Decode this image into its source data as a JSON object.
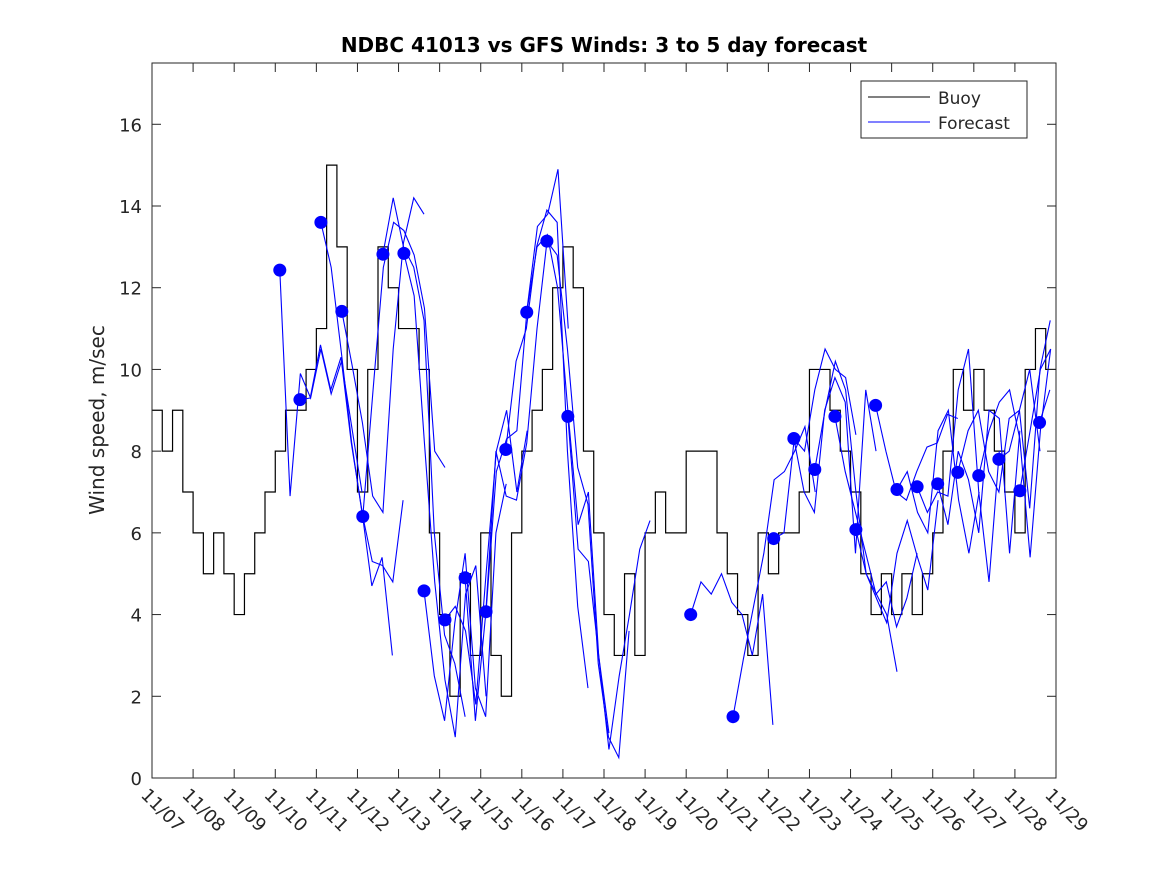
{
  "chart_data": {
    "type": "line",
    "title": "NDBC 41013 vs GFS Winds: 3 to 5 day forecast",
    "xlabel": "",
    "ylabel": "Wind speed, m/sec",
    "ylim": [
      0,
      17.5
    ],
    "xlim_days_from_start": [
      0,
      22
    ],
    "x_tick_labels": [
      "11/07",
      "11/08",
      "11/09",
      "11/10",
      "11/11",
      "11/12",
      "11/13",
      "11/14",
      "11/15",
      "11/16",
      "11/17",
      "11/18",
      "11/19",
      "11/20",
      "11/21",
      "11/22",
      "11/23",
      "11/24",
      "11/25",
      "11/26",
      "11/27",
      "11/28",
      "11/29"
    ],
    "y_ticks": [
      0,
      2,
      4,
      6,
      8,
      10,
      12,
      14,
      16
    ],
    "grid": false,
    "legend": {
      "placement": "top-right",
      "entries": [
        {
          "label": "Buoy",
          "color": "#000000"
        },
        {
          "label": "Forecast",
          "color": "#0000ff"
        }
      ]
    },
    "buoy": {
      "name": "Buoy",
      "color": "#000000",
      "step_days": 0.25,
      "values": [
        9,
        8,
        9,
        7,
        6,
        5,
        6,
        5,
        4,
        5,
        6,
        7,
        8,
        9,
        9,
        10,
        11,
        15,
        13,
        10,
        7,
        10,
        13,
        12,
        11,
        11,
        10,
        6,
        4,
        2,
        5,
        3,
        6,
        3,
        2,
        6,
        8,
        9,
        10,
        12,
        13,
        12,
        8,
        6,
        4,
        3,
        5,
        3,
        6,
        7,
        6,
        6,
        8,
        8,
        8,
        6,
        5,
        4,
        3,
        6,
        5,
        6,
        6,
        7,
        10,
        10,
        9,
        8,
        7,
        5,
        4,
        5,
        4,
        5,
        4,
        5,
        6,
        8,
        10,
        9,
        10,
        9,
        8,
        7,
        6,
        10,
        11,
        10,
        10
      ]
    },
    "forecast": {
      "name": "Forecast",
      "color": "#0000ff",
      "step_days": 0.25,
      "runs": [
        {
          "start": 3.11,
          "values": [
            12.43,
            6.9,
            9.9,
            9.3,
            10.5,
            9.4,
            10.2,
            8.6,
            7.0
          ]
        },
        {
          "start": 3.6,
          "values": [
            9.26,
            9.3,
            10.6,
            9.5,
            10.3,
            8.2,
            6.6,
            4.7,
            5.4,
            3.0
          ]
        },
        {
          "start": 4.11,
          "values": [
            13.6,
            12.5,
            10.4,
            8.2,
            6.5,
            5.3,
            5.2,
            4.8,
            6.8
          ]
        },
        {
          "start": 4.62,
          "values": [
            11.42,
            10.1,
            8.7,
            6.9,
            6.5,
            10.5,
            13.1,
            14.2,
            13.8
          ]
        },
        {
          "start": 5.13,
          "values": [
            6.4,
            9.5,
            12.5,
            13.6,
            13.4,
            12.8,
            11.5,
            8.0,
            7.6
          ]
        },
        {
          "start": 5.62,
          "values": [
            12.82,
            14.2,
            13.0,
            12.5,
            11.2,
            6.0,
            3.5,
            2.8,
            1.5
          ]
        },
        {
          "start": 6.13,
          "values": [
            12.84,
            11.8,
            8.2,
            4.8,
            2.4,
            1.0,
            4.5,
            5.2,
            2.0
          ]
        },
        {
          "start": 6.62,
          "values": [
            4.58,
            2.5,
            1.4,
            3.8,
            5.5,
            2.2,
            1.5,
            6.0,
            7.2
          ]
        },
        {
          "start": 7.13,
          "values": [
            3.87,
            4.2,
            3.6,
            1.8,
            5.0,
            8.0,
            9.0,
            7.0,
            8.5
          ]
        },
        {
          "start": 7.62,
          "values": [
            4.9,
            1.4,
            4.0,
            8.0,
            6.9,
            6.8,
            8.2,
            11.0,
            13.2
          ]
        },
        {
          "start": 8.13,
          "values": [
            4.07,
            7.5,
            8.3,
            8.5,
            11.5,
            13.5,
            13.8,
            14.9,
            11.0
          ]
        },
        {
          "start": 8.61,
          "values": [
            8.04,
            10.2,
            11.0,
            13.0,
            13.9,
            13.6,
            8.0,
            4.2,
            2.2
          ]
        },
        {
          "start": 9.12,
          "values": [
            11.4,
            13.0,
            13.3,
            12.0,
            9.0,
            6.2,
            7.0,
            3.0,
            1.1
          ]
        },
        {
          "start": 9.61,
          "values": [
            13.14,
            12.8,
            10.5,
            7.6,
            6.7,
            2.8,
            1.0,
            0.5,
            3.6
          ]
        },
        {
          "start": 10.12,
          "values": [
            8.85,
            5.6,
            5.3,
            3.0,
            0.7,
            2.5,
            4.0,
            5.6,
            6.3
          ]
        },
        {
          "start": 13.11,
          "values": [
            4.0,
            4.8,
            4.5,
            5.0,
            4.3,
            4.0,
            3.0,
            4.5,
            1.3
          ]
        },
        {
          "start": 14.14,
          "values": [
            1.5,
            2.9,
            4.2,
            5.5,
            7.3,
            7.5,
            8.0,
            8.6,
            7.0
          ]
        },
        {
          "start": 15.13,
          "values": [
            5.86,
            6.0,
            8.3,
            8.0,
            9.5,
            10.5,
            10.0,
            9.8,
            8.4
          ]
        },
        {
          "start": 15.62,
          "values": [
            8.31,
            7.0,
            6.5,
            9.0,
            9.8,
            9.2,
            5.5,
            9.5,
            8.0
          ]
        },
        {
          "start": 16.13,
          "values": [
            7.55,
            9.0,
            10.2,
            9.5,
            7.0,
            5.0,
            4.5,
            4.0,
            2.6
          ]
        },
        {
          "start": 16.62,
          "values": [
            8.85,
            7.5,
            6.5,
            5.5,
            4.5,
            4.8,
            3.7,
            4.4,
            5.5
          ]
        },
        {
          "start": 17.13,
          "values": [
            6.08,
            5.0,
            4.4,
            3.8,
            5.5,
            6.3,
            5.4,
            4.6,
            6.8
          ]
        },
        {
          "start": 17.61,
          "values": [
            9.12,
            8.0,
            7.0,
            6.8,
            7.5,
            8.1,
            8.2,
            8.9,
            8.8
          ]
        },
        {
          "start": 18.13,
          "values": [
            7.06,
            7.5,
            6.5,
            6.0,
            8.5,
            9.0,
            6.8,
            5.5,
            7.0
          ]
        },
        {
          "start": 18.62,
          "values": [
            7.13,
            6.5,
            7.0,
            6.9,
            9.5,
            10.5,
            7.0,
            4.8,
            8.0
          ]
        },
        {
          "start": 19.12,
          "values": [
            7.2,
            6.2,
            8.0,
            7.3,
            6.0,
            9.0,
            8.8,
            5.5,
            8.5
          ]
        },
        {
          "start": 19.61,
          "values": [
            7.48,
            8.5,
            9.0,
            7.5,
            7.0,
            8.8,
            9.0,
            10.0,
            8.0
          ]
        },
        {
          "start": 20.12,
          "values": [
            7.4,
            8.5,
            9.2,
            9.5,
            8.3,
            5.4,
            8.5,
            10.5,
            9.0
          ]
        },
        {
          "start": 20.61,
          "values": [
            7.8,
            8.0,
            9.0,
            6.6,
            10.0,
            11.2,
            10.0,
            9.5,
            10.3
          ]
        },
        {
          "start": 21.12,
          "values": [
            7.03,
            8.5,
            10.0,
            10.5,
            10.0,
            9.0,
            10.0
          ]
        },
        {
          "start": 21.6,
          "values": [
            8.7,
            9.5,
            10.8,
            10.0,
            9.0,
            10.0
          ]
        }
      ]
    },
    "analysis_points": {
      "color": "#0000ff",
      "x_days": [
        3.11,
        3.6,
        4.11,
        4.62,
        5.13,
        5.62,
        6.13,
        6.62,
        7.13,
        7.62,
        8.13,
        8.61,
        9.12,
        9.61,
        10.12,
        13.11,
        14.14,
        15.13,
        15.62,
        16.13,
        16.62,
        17.13,
        17.61,
        18.13,
        18.62,
        19.12,
        19.61,
        20.12,
        20.61,
        21.12,
        21.6
      ],
      "y": [
        12.43,
        9.26,
        13.6,
        11.42,
        6.4,
        12.82,
        12.84,
        4.58,
        3.87,
        4.9,
        4.07,
        8.04,
        11.4,
        13.14,
        8.85,
        4.0,
        1.5,
        5.86,
        8.31,
        7.55,
        8.85,
        6.08,
        9.12,
        7.06,
        7.13,
        7.2,
        7.48,
        7.4,
        7.8,
        7.03,
        8.7
      ]
    }
  }
}
